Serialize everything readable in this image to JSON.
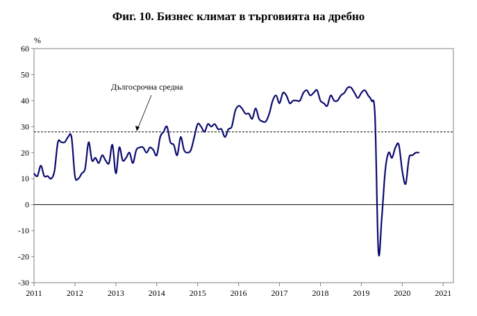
{
  "chart_data": {
    "type": "line",
    "title": "Фиг. 10. Бизнес климат в търговията на дребно",
    "ylabel": "%",
    "xlabel": "",
    "ylim": [
      -30,
      60
    ],
    "yticks": [
      60,
      50,
      40,
      30,
      20,
      10,
      0,
      -10,
      -20,
      -30
    ],
    "year_labels": [
      "2011",
      "2012",
      "2013",
      "2014",
      "2015",
      "2016",
      "2017",
      "2018",
      "2019",
      "2020",
      "2021"
    ],
    "x_start": "2011-01",
    "grid": false,
    "colors": {
      "series": "#0a0a6e",
      "reference": "#000000",
      "zero": "#000000"
    },
    "series": [
      {
        "values": [
          12,
          11,
          15,
          11,
          11,
          10,
          13,
          24,
          24,
          24,
          26,
          26,
          11,
          10,
          12,
          14,
          24,
          17,
          18,
          16,
          19,
          17,
          16,
          23,
          12,
          22,
          17,
          18,
          20,
          16,
          21,
          22,
          22,
          20,
          22,
          21,
          19,
          26,
          28,
          30,
          24,
          23,
          19,
          26,
          21,
          20,
          21,
          26,
          31,
          30,
          28,
          31,
          30,
          31,
          29,
          29,
          26,
          29,
          30,
          36,
          38,
          37,
          35,
          35,
          33,
          37,
          33,
          32,
          32,
          35,
          40,
          42,
          39,
          43,
          42,
          39,
          40,
          40,
          40,
          43,
          44,
          42,
          43,
          44,
          40,
          39,
          38,
          42,
          40,
          40,
          42,
          43,
          45,
          45,
          43,
          41,
          43,
          44,
          42,
          40,
          34,
          -18,
          -5,
          13,
          20,
          18,
          22,
          23,
          13,
          8,
          18,
          19,
          20,
          20
        ]
      }
    ],
    "reference_line": {
      "label": "Дългосрочна средна",
      "value": 28
    }
  }
}
